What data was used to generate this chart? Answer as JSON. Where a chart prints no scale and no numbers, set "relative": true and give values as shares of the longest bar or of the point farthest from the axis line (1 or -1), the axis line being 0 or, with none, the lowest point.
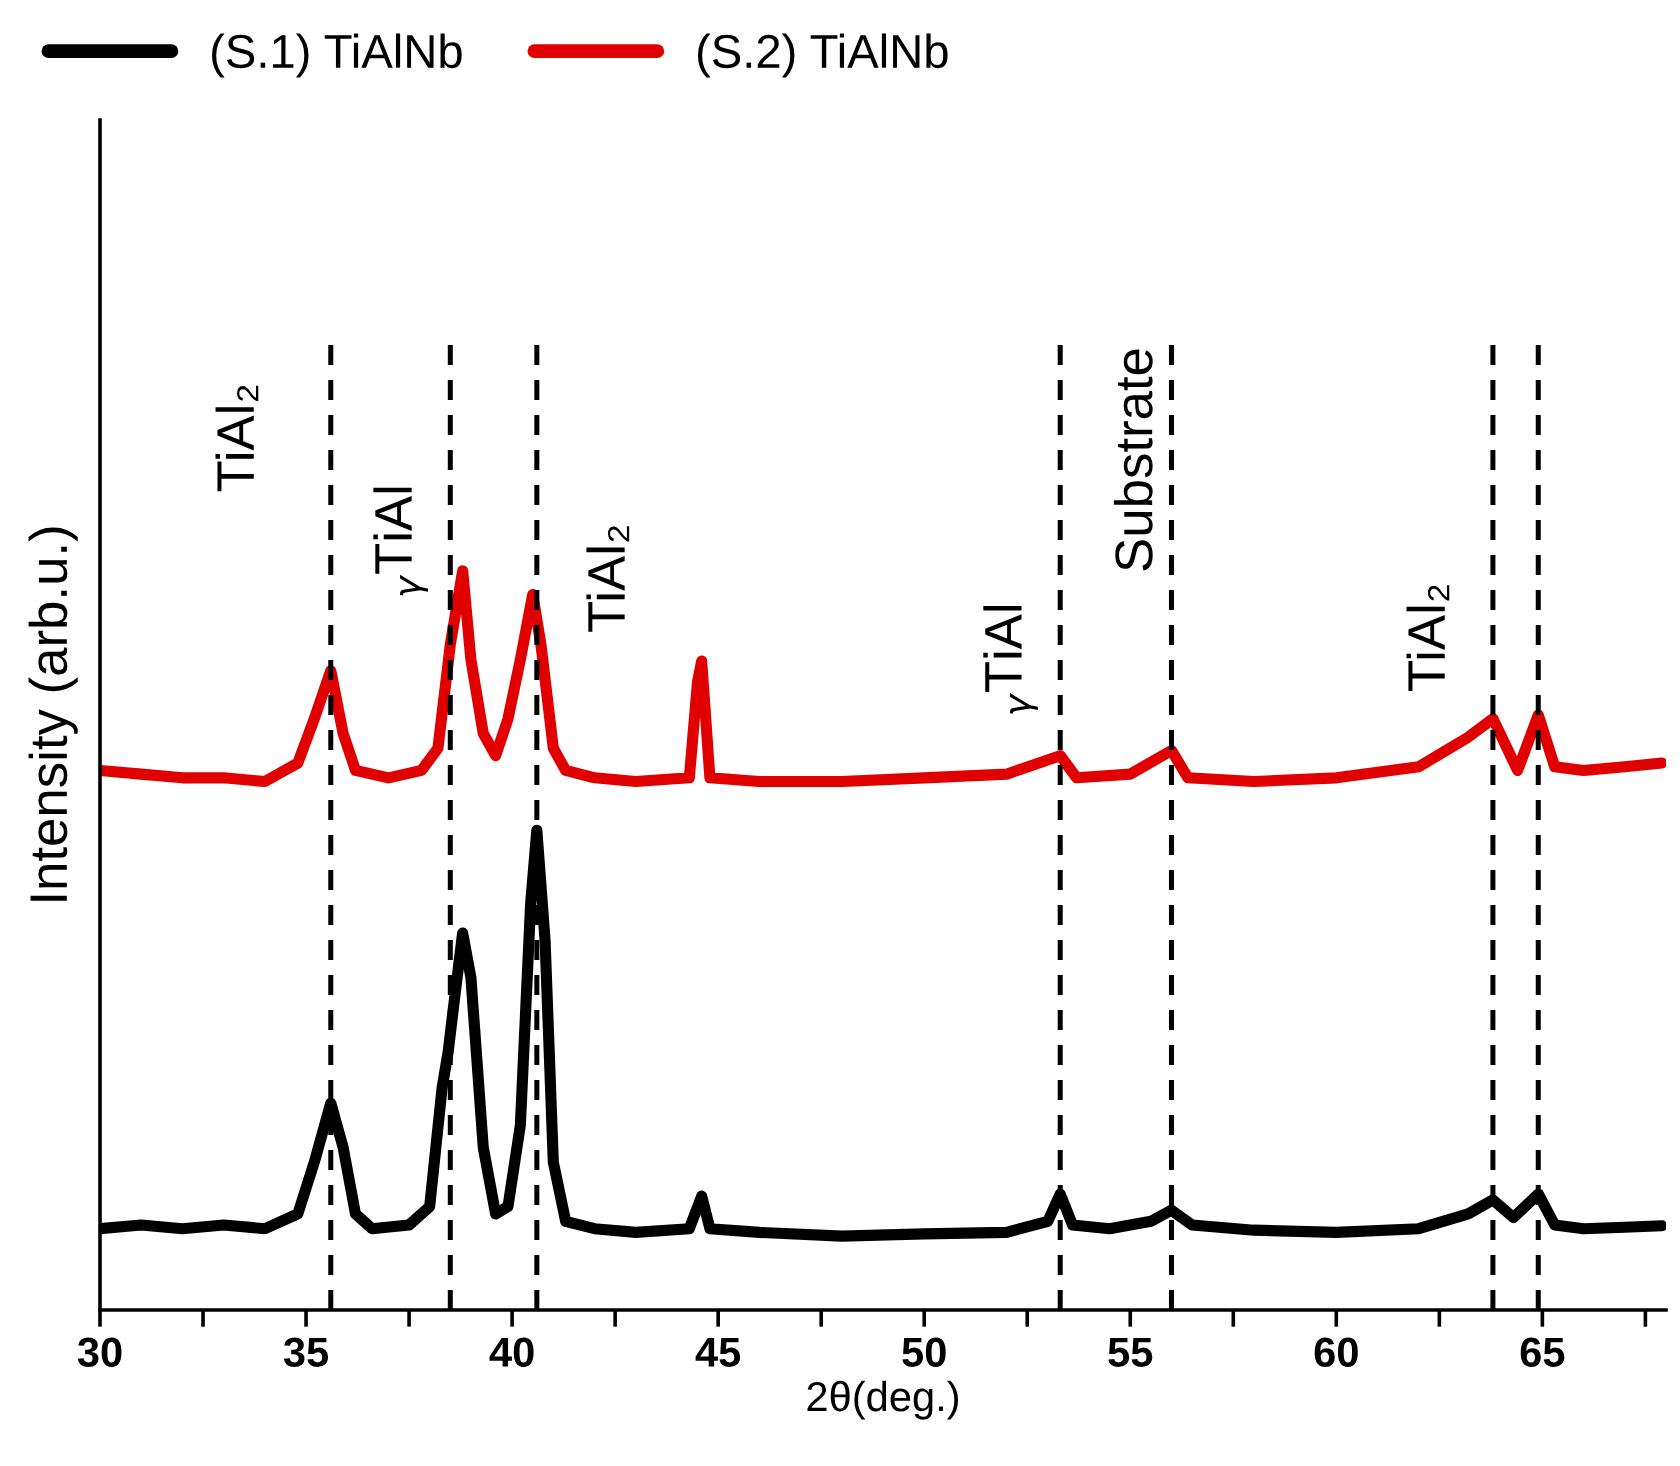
{
  "chart_data": {
    "type": "line",
    "relative": true,
    "xlabel": "2θ(deg.)",
    "ylabel": "Intensity (arb.u.)",
    "xlim": [
      30,
      68
    ],
    "xticks": [
      30,
      {
        "value": 32.5,
        "label": null
      },
      35,
      {
        "value": 37.5,
        "label": null
      },
      40,
      {
        "value": 42.5,
        "label": null
      },
      45,
      {
        "value": 47.5,
        "label": null
      },
      50,
      {
        "value": 52.5,
        "label": null
      },
      55,
      {
        "value": 57.5,
        "label": null
      },
      60,
      {
        "value": 62.5,
        "label": null
      },
      65,
      {
        "value": 67.5,
        "label": null
      }
    ],
    "tick_labels": "x",
    "grid": false,
    "legend": "top",
    "marker": "none",
    "line_style": "solid",
    "series": [
      {
        "name": "(S.1) TiAlNb",
        "color": "#000000",
        "x": [
          30,
          31,
          32,
          33,
          34,
          34.8,
          35.2,
          35.6,
          35.9,
          36.2,
          36.6,
          37.5,
          38.0,
          38.3,
          38.45,
          38.6,
          38.8,
          39.0,
          39.3,
          39.6,
          39.9,
          40.2,
          40.45,
          40.6,
          40.8,
          41.0,
          41.3,
          42,
          43,
          44.3,
          44.6,
          44.8,
          46,
          48,
          50,
          52,
          53.0,
          53.3,
          53.6,
          54.5,
          55.5,
          56,
          56.5,
          58,
          60,
          62,
          63.2,
          63.8,
          64.3,
          64.9,
          65.3,
          66,
          67,
          67.9
        ],
        "values": [
          0.11,
          0.115,
          0.11,
          0.115,
          0.11,
          0.13,
          0.2,
          0.28,
          0.22,
          0.13,
          0.11,
          0.115,
          0.14,
          0.3,
          0.35,
          0.42,
          0.51,
          0.45,
          0.22,
          0.13,
          0.14,
          0.25,
          0.55,
          0.649,
          0.5,
          0.2,
          0.12,
          0.11,
          0.105,
          0.11,
          0.154,
          0.11,
          0.105,
          0.1,
          0.103,
          0.105,
          0.12,
          0.157,
          0.115,
          0.11,
          0.12,
          0.135,
          0.115,
          0.108,
          0.105,
          0.11,
          0.13,
          0.149,
          0.125,
          0.157,
          0.115,
          0.11,
          0.112,
          0.114
        ]
      },
      {
        "name": "(S.2) TiAlNb",
        "color": "#e00000",
        "x": [
          30,
          31,
          32,
          33,
          34,
          34.8,
          35.2,
          35.6,
          35.9,
          36.2,
          37,
          37.8,
          38.2,
          38.5,
          38.8,
          39.0,
          39.3,
          39.6,
          39.9,
          40.2,
          40.5,
          40.7,
          41.0,
          41.3,
          42,
          43,
          44.3,
          44.5,
          44.6,
          44.8,
          46,
          48,
          50,
          52,
          53.3,
          53.7,
          55,
          56,
          56.4,
          58,
          60,
          62,
          63.2,
          63.8,
          64.4,
          64.9,
          65.3,
          66,
          67,
          67.9
        ],
        "values": [
          0.73,
          0.725,
          0.72,
          0.72,
          0.715,
          0.74,
          0.8,
          0.865,
          0.78,
          0.73,
          0.72,
          0.73,
          0.76,
          0.9,
          1.0,
          0.88,
          0.78,
          0.75,
          0.8,
          0.88,
          0.968,
          0.9,
          0.76,
          0.73,
          0.72,
          0.715,
          0.72,
          0.85,
          0.878,
          0.72,
          0.715,
          0.715,
          0.72,
          0.725,
          0.75,
          0.72,
          0.725,
          0.757,
          0.72,
          0.715,
          0.72,
          0.735,
          0.775,
          0.8,
          0.73,
          0.805,
          0.735,
          0.73,
          0.735,
          0.74
        ]
      }
    ],
    "ref_lines": [
      {
        "axis": "x",
        "value": 35.6,
        "color": "#000000",
        "line_style": "dashed",
        "label": "TiAl₂"
      },
      {
        "axis": "x",
        "value": 38.5,
        "color": "#000000",
        "line_style": "dashed",
        "label": "$_{γ}$TiAl"
      },
      {
        "axis": "x",
        "value": 40.6,
        "color": "#000000",
        "line_style": "dashed",
        "label": "TiAl₂"
      },
      {
        "axis": "x",
        "value": 53.3,
        "color": "#000000",
        "line_style": "dashed",
        "label": "$_{γ}$TiAl"
      },
      {
        "axis": "x",
        "value": 56.0,
        "color": "#000000",
        "line_style": "dashed",
        "label": "Substrate"
      },
      {
        "axis": "x",
        "value": 63.8,
        "color": "#000000",
        "line_style": "dashed",
        "label": "TiAl₂"
      },
      {
        "axis": "x",
        "value": 64.9,
        "color": "#000000",
        "line_style": "dashed"
      }
    ]
  }
}
